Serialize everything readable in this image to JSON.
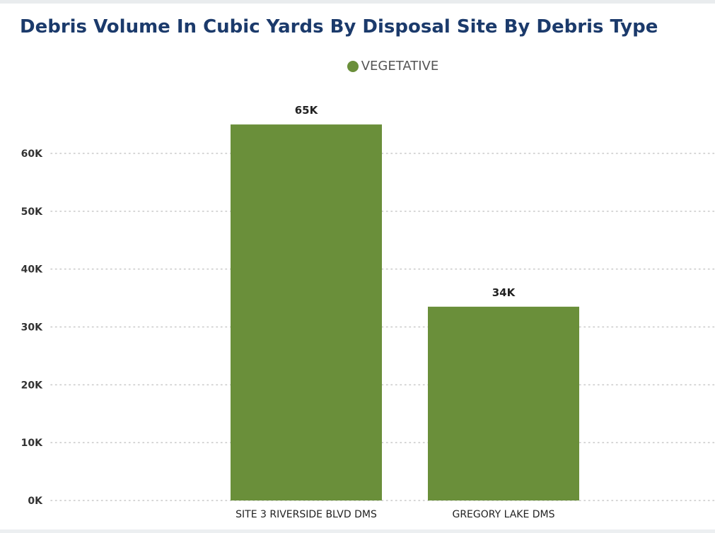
{
  "colors": {
    "series": "#6a8f3a",
    "title": "#1b3a6b",
    "grid": "#c8c8c8"
  },
  "chart_data": {
    "type": "bar",
    "title": "Debris Volume In Cubic Yards By Disposal Site By Debris Type",
    "legend": {
      "placement": "top-center"
    },
    "categories": [
      "SITE 3 RIVERSIDE BLVD DMS",
      "GREGORY LAKE DMS"
    ],
    "series": [
      {
        "name": "VEGETATIVE",
        "values": [
          65000,
          33500
        ],
        "data_labels": [
          "65K",
          "34K"
        ]
      }
    ],
    "ylim": [
      0,
      60000
    ],
    "yticks": [
      0,
      10000,
      20000,
      30000,
      40000,
      50000,
      60000
    ],
    "ytick_labels": [
      "0K",
      "10K",
      "20K",
      "30K",
      "40K",
      "50K",
      "60K"
    ],
    "grid": true
  }
}
